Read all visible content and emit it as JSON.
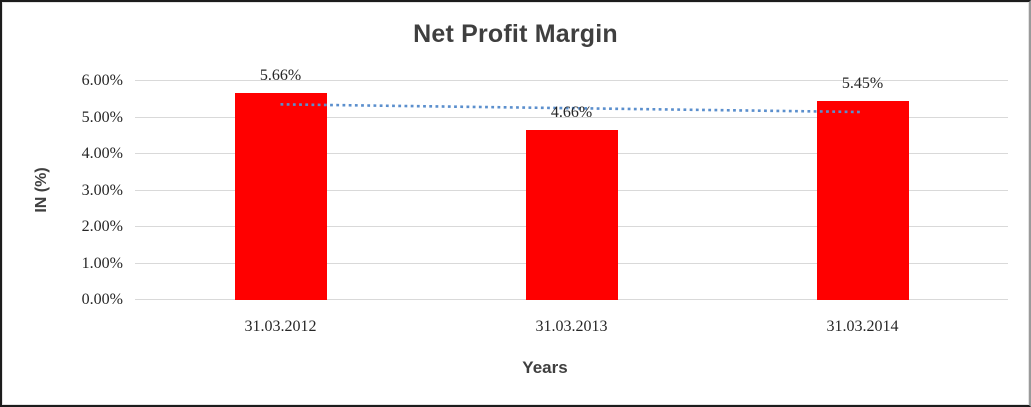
{
  "chart_data": {
    "type": "bar",
    "title": "Net Profit Margin",
    "xlabel": "Years",
    "ylabel": "IN (%)",
    "categories": [
      "31.03.2012",
      "31.03.2013",
      "31.03.2014"
    ],
    "values": [
      5.66,
      4.66,
      5.45
    ],
    "data_labels": [
      "5.66%",
      "4.66%",
      "5.45%"
    ],
    "yticks": [
      "0.00%",
      "1.00%",
      "2.00%",
      "3.00%",
      "4.00%",
      "5.00%",
      "6.00%"
    ],
    "ylim": [
      0,
      6
    ],
    "grid": true,
    "legend_position": "none",
    "bar_color": "#FF0000",
    "gridline_color": "#D9D9D9",
    "text_color": "#262626",
    "title_color": "#3F3F3F",
    "trendline": {
      "type": "linear",
      "style": "dotted",
      "color": "#5B8FCD",
      "start_value": 5.36,
      "end_value": 5.15
    }
  }
}
